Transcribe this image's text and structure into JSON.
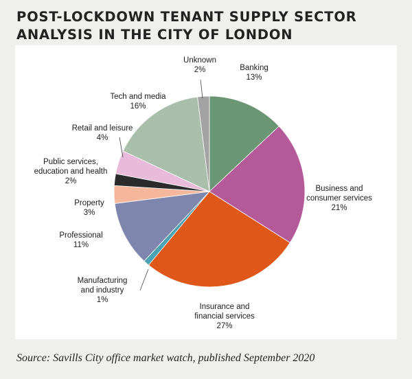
{
  "title": {
    "line1": "POST-LOCKDOWN TENANT SUPPLY SECTOR",
    "line2": "ANALYSIS IN THE CITY OF LONDON"
  },
  "source": "Source: Savills City office market watch, published September 2020",
  "chart_data": {
    "type": "pie",
    "unit": "%",
    "slices": [
      {
        "label": [
          "Banking"
        ],
        "value": 13,
        "value_text": "13%",
        "color": "#6b9673"
      },
      {
        "label": [
          "Business and",
          "consumer services"
        ],
        "value": 21,
        "value_text": "21%",
        "color": "#b45a98"
      },
      {
        "label": [
          "Insurance and",
          "financial services"
        ],
        "value": 27,
        "value_text": "27%",
        "color": "#e0571a"
      },
      {
        "label": [
          "Manufacturing",
          "and industry"
        ],
        "value": 1,
        "value_text": "1%",
        "color": "#4aa3b3"
      },
      {
        "label": [
          "Professional"
        ],
        "value": 11,
        "value_text": "11%",
        "color": "#7f86ae"
      },
      {
        "label": [
          "Property"
        ],
        "value": 3,
        "value_text": "3%",
        "color": "#f4b79c"
      },
      {
        "label": [
          "Public services,",
          "education and health"
        ],
        "value": 2,
        "value_text": "2%",
        "color": "#2b2b2b"
      },
      {
        "label": [
          "Retail and leisure"
        ],
        "value": 4,
        "value_text": "4%",
        "color": "#e7bbd9"
      },
      {
        "label": [
          "Tech and media"
        ],
        "value": 16,
        "value_text": "16%",
        "color": "#a9bfab"
      },
      {
        "label": [
          "Unknown"
        ],
        "value": 2,
        "value_text": "2%",
        "color": "#a3a3a3"
      }
    ]
  }
}
